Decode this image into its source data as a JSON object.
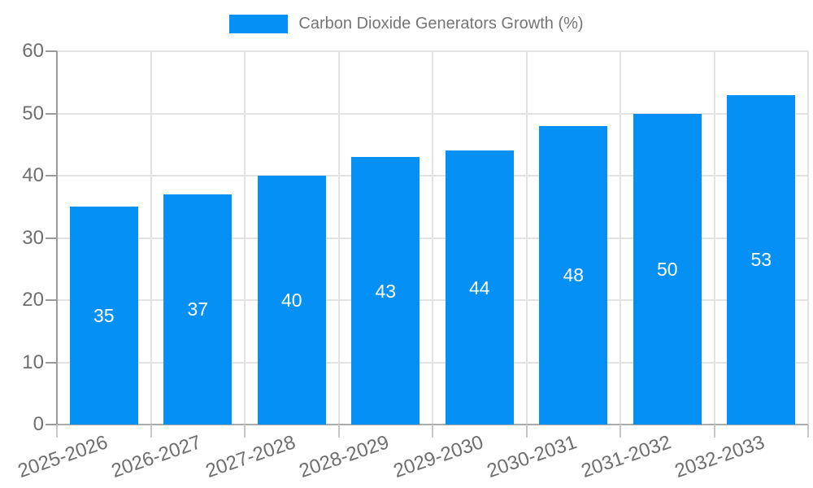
{
  "chart_data": {
    "type": "bar",
    "title": "Carbon Dioxide Generators Growth (%)",
    "categories": [
      "2025-2026",
      "2026-2027",
      "2027-2028",
      "2028-2029",
      "2029-2030",
      "2030-2031",
      "2031-2032",
      "2032-2033"
    ],
    "values": [
      35,
      37,
      40,
      43,
      44,
      48,
      50,
      53
    ],
    "xlabel": "",
    "ylabel": "",
    "ylim": [
      0,
      60
    ],
    "ytick_step": 10,
    "ytick_labels": [
      "0",
      "10",
      "20",
      "30",
      "40",
      "50",
      "60"
    ],
    "bar_value_labels": [
      "35",
      "37",
      "40",
      "43",
      "44",
      "48",
      "50",
      "53"
    ],
    "legend_position": "top",
    "grid": true
  },
  "colors": {
    "bar": "#0590f5",
    "bar_value_text": "#ffffff",
    "tick_label": "#6e6e6e",
    "legend_text": "#757575",
    "gridline": "#e2e2e2",
    "x_axis_line": "#ababab",
    "y_axis_line": "#9a9a9a",
    "background": "#ffffff"
  }
}
